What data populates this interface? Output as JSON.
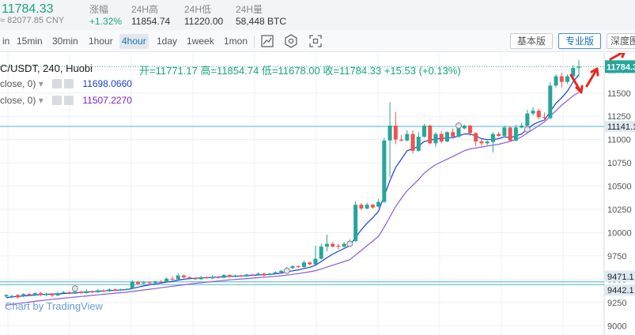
{
  "ticker": {
    "last_price": "11784.33",
    "cny_value": "≈ 82077.85 CNY",
    "change_label": "涨幅",
    "change_value": "+1.32%",
    "high_label": "24H高",
    "high_value": "11854.74",
    "low_label": "24H低",
    "low_value": "11220.00",
    "volume_label": "24H量",
    "volume_value": "58,448 BTC"
  },
  "toolbar": {
    "intervals": [
      "in",
      "15min",
      "30min",
      "1hour",
      "4hour",
      "1day",
      "1week",
      "1mon"
    ],
    "active_interval": "4hour",
    "basic_label": "基本版",
    "pro_label": "专业版",
    "depth_label": "深度图"
  },
  "chart": {
    "symbol_label": "C/USDT, 240, Huobi",
    "ohlc_text": "开=11771.17  高=11854.74  低=11678.00  收=11784.33  +15.53 (+0.13%)",
    "ma1_label": "close, 0)",
    "ma1_value": "11698.0660",
    "ma2_label": "close, 0)",
    "ma2_value": "11507.2270",
    "watermark": "Chart by TradingView",
    "price_tag": "11784.3",
    "hline_labels": [
      "11141.1",
      "9471.1",
      "9442.1"
    ],
    "colors": {
      "up": "#26a69a",
      "down": "#ef5350",
      "ma_fast": "#1b3fd6",
      "ma_slow": "#8a5cd6",
      "hline": "#4fb5c4",
      "annotation": "#e8281e"
    }
  },
  "chart_data": {
    "type": "candlestick",
    "title": "C/USDT, 240, Huobi",
    "yticks": [
      9000,
      9250,
      9500,
      9750,
      10000,
      10250,
      10500,
      10750,
      11000,
      11250,
      11500,
      11750
    ],
    "ylim": [
      8960,
      11880
    ],
    "candles": [
      [
        9315,
        9330,
        9300,
        9340
      ],
      [
        9310,
        9320,
        9295,
        9330
      ],
      [
        9330,
        9305,
        9290,
        9340
      ],
      [
        9320,
        9340,
        9305,
        9350
      ],
      [
        9340,
        9330,
        9320,
        9355
      ],
      [
        9330,
        9350,
        9320,
        9360
      ],
      [
        9350,
        9330,
        9320,
        9365
      ],
      [
        9330,
        9345,
        9315,
        9355
      ],
      [
        9345,
        9325,
        9310,
        9350
      ],
      [
        9325,
        9350,
        9320,
        9365
      ],
      [
        9350,
        9360,
        9340,
        9375
      ],
      [
        9360,
        9345,
        9335,
        9370
      ],
      [
        9345,
        9365,
        9340,
        9380
      ],
      [
        9365,
        9350,
        9345,
        9375
      ],
      [
        9350,
        9370,
        9345,
        9390
      ],
      [
        9370,
        9360,
        9350,
        9380
      ],
      [
        9360,
        9380,
        9355,
        9395
      ],
      [
        9380,
        9370,
        9360,
        9395
      ],
      [
        9370,
        9390,
        9365,
        9405
      ],
      [
        9390,
        9375,
        9370,
        9400
      ],
      [
        9380,
        9390,
        9370,
        9400
      ],
      [
        9390,
        9395,
        9380,
        9405
      ],
      [
        9400,
        9470,
        9390,
        9490
      ],
      [
        9470,
        9450,
        9440,
        9480
      ],
      [
        9455,
        9465,
        9445,
        9480
      ],
      [
        9465,
        9460,
        9450,
        9475
      ],
      [
        9460,
        9475,
        9455,
        9485
      ],
      [
        9475,
        9470,
        9460,
        9490
      ],
      [
        9470,
        9505,
        9465,
        9520
      ],
      [
        9505,
        9500,
        9490,
        9530
      ],
      [
        9500,
        9540,
        9495,
        9560
      ],
      [
        9540,
        9520,
        9510,
        9550
      ],
      [
        9520,
        9510,
        9500,
        9530
      ],
      [
        9510,
        9505,
        9490,
        9520
      ],
      [
        9500,
        9520,
        9495,
        9535
      ],
      [
        9520,
        9510,
        9505,
        9530
      ],
      [
        9510,
        9525,
        9500,
        9545
      ],
      [
        9525,
        9515,
        9505,
        9535
      ],
      [
        9515,
        9545,
        9510,
        9555
      ],
      [
        9545,
        9525,
        9515,
        9550
      ],
      [
        9525,
        9540,
        9520,
        9550
      ],
      [
        9540,
        9530,
        9520,
        9545
      ],
      [
        9530,
        9550,
        9525,
        9560
      ],
      [
        9550,
        9545,
        9535,
        9560
      ],
      [
        9545,
        9560,
        9540,
        9575
      ],
      [
        9560,
        9540,
        9530,
        9570
      ],
      [
        9545,
        9560,
        9540,
        9570
      ],
      [
        9560,
        9575,
        9555,
        9585
      ],
      [
        9575,
        9590,
        9570,
        9600
      ],
      [
        9590,
        9620,
        9585,
        9630
      ],
      [
        9620,
        9640,
        9610,
        9650
      ],
      [
        9640,
        9630,
        9620,
        9650
      ],
      [
        9630,
        9680,
        9625,
        9700
      ],
      [
        9680,
        9660,
        9650,
        9690
      ],
      [
        9660,
        9720,
        9655,
        9860
      ],
      [
        9720,
        9850,
        9710,
        9880
      ],
      [
        9850,
        9880,
        9800,
        9980
      ],
      [
        9880,
        9850,
        9840,
        9900
      ],
      [
        9860,
        9850,
        9820,
        9880
      ],
      [
        9850,
        9880,
        9840,
        9900
      ],
      [
        9880,
        9910,
        9870,
        9930
      ],
      [
        9910,
        10300,
        9900,
        10340
      ],
      [
        10300,
        10260,
        10240,
        10320
      ],
      [
        10260,
        10300,
        10250,
        10320
      ],
      [
        10300,
        10270,
        10260,
        10310
      ],
      [
        10280,
        10330,
        10270,
        10360
      ],
      [
        10330,
        10990,
        10320,
        11020
      ],
      [
        10990,
        11150,
        10600,
        11400
      ],
      [
        11150,
        11000,
        10950,
        11300
      ],
      [
        11000,
        10990,
        10980,
        11050
      ],
      [
        10990,
        11060,
        10980,
        11100
      ],
      [
        11060,
        10880,
        10850,
        11100
      ],
      [
        10880,
        11030,
        10870,
        11080
      ],
      [
        11030,
        11150,
        11020,
        11170
      ],
      [
        11150,
        10960,
        10950,
        11160
      ],
      [
        10960,
        11060,
        10920,
        11080
      ],
      [
        11060,
        10980,
        10960,
        11090
      ],
      [
        10980,
        11080,
        10970,
        11090
      ],
      [
        11080,
        11030,
        11010,
        11120
      ],
      [
        11030,
        11120,
        11020,
        11150
      ],
      [
        11120,
        11150,
        11110,
        11160
      ],
      [
        11150,
        11070,
        11040,
        11160
      ],
      [
        11070,
        10980,
        10930,
        11080
      ],
      [
        10980,
        10960,
        10930,
        11000
      ],
      [
        10960,
        10980,
        10940,
        10990
      ],
      [
        10975,
        11060,
        10860,
        11080
      ],
      [
        11060,
        11040,
        11030,
        11080
      ],
      [
        11040,
        11130,
        11030,
        11150
      ],
      [
        11130,
        10990,
        10980,
        11140
      ],
      [
        10990,
        11130,
        10980,
        11160
      ],
      [
        11130,
        11150,
        11120,
        11180
      ],
      [
        11150,
        11280,
        11140,
        11320
      ],
      [
        11280,
        11310,
        11260,
        11350
      ],
      [
        11310,
        11240,
        11220,
        11330
      ],
      [
        11240,
        11230,
        11210,
        11290
      ],
      [
        11230,
        11580,
        11220,
        11620
      ],
      [
        11580,
        11680,
        11560,
        11700
      ],
      [
        11680,
        11620,
        11560,
        11720
      ],
      [
        11620,
        11680,
        11600,
        11700
      ],
      [
        11680,
        11770,
        11650,
        11800
      ],
      [
        11771,
        11784,
        11678,
        11855
      ]
    ],
    "ma_fast": [
      9300,
      9310,
      9315,
      9320,
      9325,
      9330,
      9334,
      9338,
      9340,
      9342,
      9346,
      9350,
      9354,
      9358,
      9362,
      9366,
      9370,
      9374,
      9378,
      9380,
      9384,
      9388,
      9400,
      9415,
      9428,
      9440,
      9450,
      9458,
      9468,
      9478,
      9490,
      9500,
      9506,
      9510,
      9514,
      9517,
      9520,
      9523,
      9527,
      9530,
      9532,
      9535,
      9538,
      9542,
      9546,
      9548,
      9552,
      9558,
      9566,
      9578,
      9590,
      9600,
      9615,
      9628,
      9650,
      9690,
      9730,
      9770,
      9800,
      9830,
      9860,
      9950,
      10030,
      10100,
      10160,
      10230,
      10390,
      10560,
      10700,
      10790,
      10880,
      10900,
      10930,
      10980,
      10990,
      11010,
      11010,
      11020,
      11020,
      11040,
      11060,
      11060,
      11040,
      11010,
      11000,
      11000,
      11010,
      11030,
      11020,
      11040,
      11060,
      11110,
      11160,
      11190,
      11210,
      11300,
      11390,
      11450,
      11520,
      11620,
      11698
    ],
    "ma_slow": [
      9220,
      9230,
      9238,
      9246,
      9254,
      9262,
      9270,
      9277,
      9284,
      9290,
      9296,
      9302,
      9308,
      9314,
      9320,
      9326,
      9332,
      9338,
      9344,
      9350,
      9355,
      9360,
      9368,
      9376,
      9384,
      9392,
      9400,
      9408,
      9416,
      9424,
      9432,
      9440,
      9448,
      9455,
      9462,
      9468,
      9474,
      9480,
      9486,
      9492,
      9497,
      9502,
      9507,
      9512,
      9517,
      9522,
      9526,
      9530,
      9536,
      9544,
      9552,
      9560,
      9570,
      9580,
      9592,
      9610,
      9630,
      9650,
      9670,
      9690,
      9710,
      9760,
      9810,
      9860,
      9910,
      9960,
      10060,
      10170,
      10280,
      10370,
      10450,
      10510,
      10570,
      10640,
      10690,
      10730,
      10760,
      10790,
      10820,
      10850,
      10880,
      10900,
      10910,
      10920,
      10930,
      10940,
      10950,
      10965,
      10980,
      11000,
      11030,
      11070,
      11110,
      11150,
      11190,
      11250,
      11310,
      11370,
      11420,
      11470,
      11507
    ],
    "hlines": [
      11141,
      9471,
      9442
    ]
  }
}
